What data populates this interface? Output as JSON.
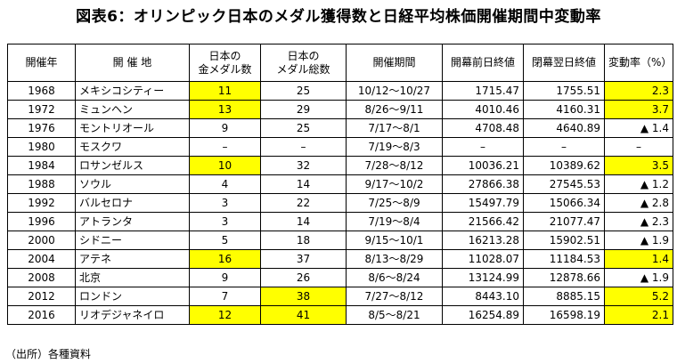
{
  "title": "図表6：オリンピック日本のメダル獲得数と日経平均株価開催期間中変動率",
  "colors": {
    "highlight": "#ffff00",
    "border": "#000000"
  },
  "headers": {
    "year": "開催年",
    "city": "開 催 地",
    "gold_line1": "日本の",
    "gold_line2": "金メダル数",
    "total_line1": "日本の",
    "total_line2": "メダル総数",
    "period": "開催期間",
    "open_close": "開幕前日終値",
    "close_close": "閉幕翌日終値",
    "change": "変動率（%）"
  },
  "rows": [
    {
      "year": "1968",
      "city": "メキシコシティー",
      "gold": "11",
      "total": "25",
      "period": "10/12～10/27",
      "before": "1715.47",
      "after": "1755.51",
      "change": "2.3",
      "hl_gold": true,
      "hl_total": false,
      "hl_change": true
    },
    {
      "year": "1972",
      "city": "ミュンヘン",
      "gold": "13",
      "total": "29",
      "period": "8/26～9/11",
      "before": "4010.46",
      "after": "4160.31",
      "change": "3.7",
      "hl_gold": true,
      "hl_total": false,
      "hl_change": true
    },
    {
      "year": "1976",
      "city": "モントリオール",
      "gold": "9",
      "total": "25",
      "period": "7/17～8/1",
      "before": "4708.48",
      "after": "4640.89",
      "change": "▲ 1.4",
      "hl_gold": false,
      "hl_total": false,
      "hl_change": false
    },
    {
      "year": "1980",
      "city": "モスクワ",
      "gold": "–",
      "total": "–",
      "period": "7/19～8/3",
      "before": "–",
      "after": "–",
      "change": "–",
      "hl_gold": false,
      "hl_total": false,
      "hl_change": false
    },
    {
      "year": "1984",
      "city": "ロサンゼルス",
      "gold": "10",
      "total": "32",
      "period": "7/28～8/12",
      "before": "10036.21",
      "after": "10389.62",
      "change": "3.5",
      "hl_gold": true,
      "hl_total": false,
      "hl_change": true
    },
    {
      "year": "1988",
      "city": "ソウル",
      "gold": "4",
      "total": "14",
      "period": "9/17～10/2",
      "before": "27866.38",
      "after": "27545.53",
      "change": "▲ 1.2",
      "hl_gold": false,
      "hl_total": false,
      "hl_change": false
    },
    {
      "year": "1992",
      "city": "バルセロナ",
      "gold": "3",
      "total": "22",
      "period": "7/25～8/9",
      "before": "15497.79",
      "after": "15066.34",
      "change": "▲ 2.8",
      "hl_gold": false,
      "hl_total": false,
      "hl_change": false
    },
    {
      "year": "1996",
      "city": "アトランタ",
      "gold": "3",
      "total": "14",
      "period": "7/19～8/4",
      "before": "21566.42",
      "after": "21077.47",
      "change": "▲ 2.3",
      "hl_gold": false,
      "hl_total": false,
      "hl_change": false
    },
    {
      "year": "2000",
      "city": "シドニー",
      "gold": "5",
      "total": "18",
      "period": "9/15～10/1",
      "before": "16213.28",
      "after": "15902.51",
      "change": "▲ 1.9",
      "hl_gold": false,
      "hl_total": false,
      "hl_change": false
    },
    {
      "year": "2004",
      "city": "アテネ",
      "gold": "16",
      "total": "37",
      "period": "8/13～8/29",
      "before": "11028.07",
      "after": "11184.53",
      "change": "1.4",
      "hl_gold": true,
      "hl_total": false,
      "hl_change": true
    },
    {
      "year": "2008",
      "city": "北京",
      "gold": "9",
      "total": "26",
      "period": "8/6～8/24",
      "before": "13124.99",
      "after": "12878.66",
      "change": "▲ 1.9",
      "hl_gold": false,
      "hl_total": false,
      "hl_change": false
    },
    {
      "year": "2012",
      "city": "ロンドン",
      "gold": "7",
      "total": "38",
      "period": "7/27～8/12",
      "before": "8443.10",
      "after": "8885.15",
      "change": "5.2",
      "hl_gold": false,
      "hl_total": true,
      "hl_change": true
    },
    {
      "year": "2016",
      "city": "リオデジャネイロ",
      "gold": "12",
      "total": "41",
      "period": "8/5～8/21",
      "before": "16254.89",
      "after": "16598.19",
      "change": "2.1",
      "hl_gold": true,
      "hl_total": true,
      "hl_change": true
    }
  ],
  "source": "（出所）各種資料"
}
